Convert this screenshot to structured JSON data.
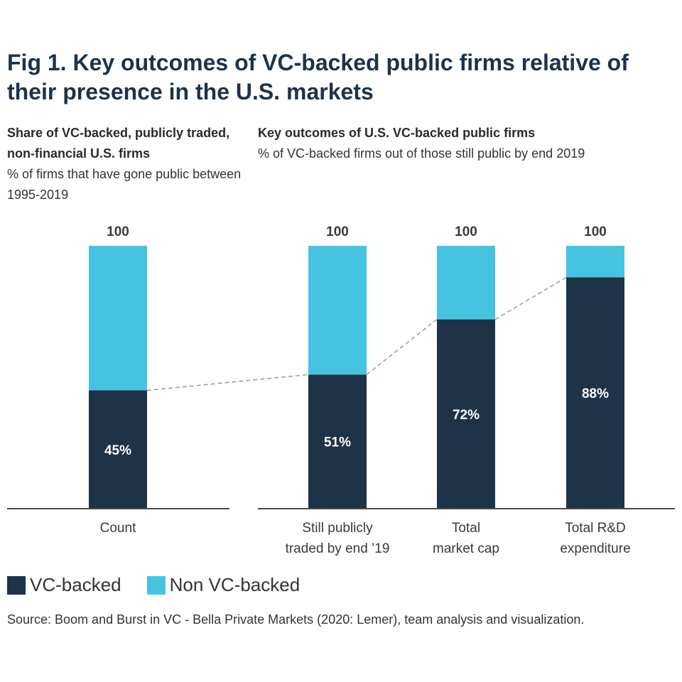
{
  "title": "Fig 1. Key outcomes of VC-backed public firms relative of their presence in the U.S. markets",
  "left_panel": {
    "heading": "Share of VC-backed, publicly traded, non-financial U.S. firms",
    "subheading": "% of firms that have gone public between 1995-2019"
  },
  "right_panel": {
    "heading": "Key outcomes of U.S. VC-backed public firms",
    "subheading": "% of VC-backed firms out of those still public by end 2019"
  },
  "legend": {
    "vc": "VC-backed",
    "non_vc": "Non VC-backed"
  },
  "source": "Source: Boom and Burst in VC - Bella Private Markets (2020: Lemer), team analysis and visualization.",
  "colors": {
    "vc": "#1e3248",
    "non_vc": "#47c3e2",
    "axis": "#4a4a4a",
    "connector": "#9a9a9a"
  },
  "chart_data": {
    "type": "bar",
    "stacked": true,
    "ylim": [
      0,
      100
    ],
    "series": [
      {
        "name": "VC-backed",
        "values": [
          45,
          51,
          72,
          88
        ]
      },
      {
        "name": "Non VC-backed",
        "values": [
          55,
          49,
          28,
          12
        ]
      }
    ],
    "categories": [
      {
        "label": [
          "Count"
        ],
        "total": "100",
        "vc_label": "45%"
      },
      {
        "label": [
          "Still publicly",
          "traded by end ’19"
        ],
        "total": "100",
        "vc_label": "51%"
      },
      {
        "label": [
          "Total",
          "market cap"
        ],
        "total": "100",
        "vc_label": "72%"
      },
      {
        "label": [
          "Total R&D",
          "expenditure"
        ],
        "total": "100",
        "vc_label": "88%"
      }
    ]
  }
}
